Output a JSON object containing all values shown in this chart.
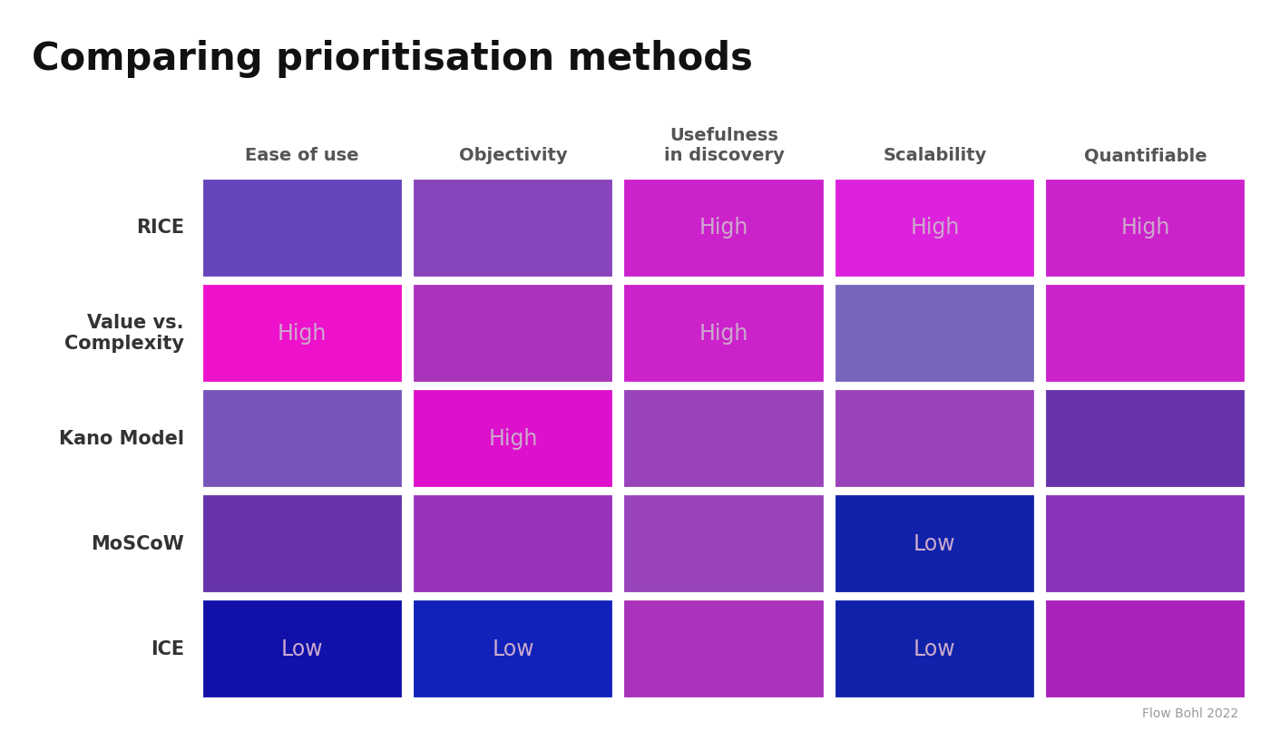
{
  "title": "Comparing prioritisation methods",
  "rows": [
    "RICE",
    "Value vs.\nComplexity",
    "Kano Model",
    "MoSCoW",
    "ICE"
  ],
  "cols": [
    "Ease of use",
    "Objectivity",
    "Usefulness\nin discovery",
    "Scalability",
    "Quantifiable"
  ],
  "cell_colors": [
    [
      "#6644BB",
      "#8844BB",
      "#CC22CC",
      "#DD22DD",
      "#CC22CC"
    ],
    [
      "#EE11CC",
      "#AA33BB",
      "#CC22CC",
      "#7766BB",
      "#CC22CC"
    ],
    [
      "#7755BB",
      "#DD11CC",
      "#9944BB",
      "#9944BB",
      "#6633AA"
    ],
    [
      "#6633AA",
      "#9933BB",
      "#9944BB",
      "#1122AA",
      "#8833BB"
    ],
    [
      "#1111AA",
      "#1122BB",
      "#AA33BB",
      "#1122AA",
      "#AA22BB"
    ]
  ],
  "cell_labels": [
    [
      "",
      "",
      "High",
      "High",
      "High"
    ],
    [
      "High",
      "",
      "High",
      "",
      ""
    ],
    [
      "",
      "High",
      "",
      "",
      ""
    ],
    [
      "",
      "",
      "",
      "Low",
      ""
    ],
    [
      "Low",
      "Low",
      "",
      "Low",
      ""
    ]
  ],
  "label_color": "#CCAACC",
  "background_color": "#FFFFFF",
  "title_fontsize": 30,
  "col_fontsize": 14,
  "row_fontsize": 15,
  "label_fontsize": 17,
  "watermark": "Flow Bohl 2022",
  "col_header_color": "#555555",
  "row_label_color": "#333333"
}
